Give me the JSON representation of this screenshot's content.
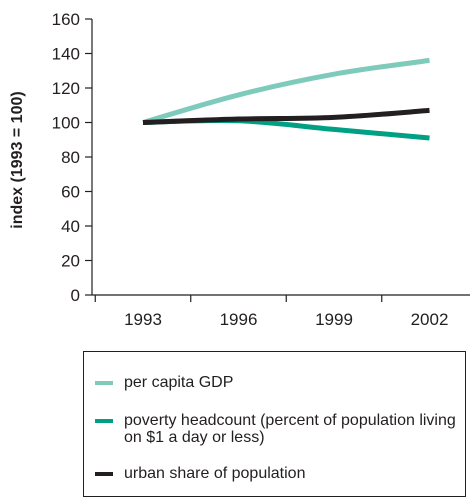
{
  "chart_data": {
    "type": "line",
    "title": "",
    "xlabel": "",
    "ylabel": "index (1993 = 100)",
    "x": [
      "1993",
      "1996",
      "1999",
      "2002"
    ],
    "ylim": [
      0,
      160
    ],
    "yticks": [
      0,
      20,
      40,
      60,
      80,
      100,
      120,
      140,
      160
    ],
    "grid": false,
    "legend_position": "bottom",
    "series": [
      {
        "name": "per capita GDP",
        "color": "#7fcbbb",
        "values": [
          100,
          116,
          128,
          136
        ]
      },
      {
        "name": "poverty headcount (percent of population living on $1 a day or less)",
        "color": "#00a085",
        "values": [
          100,
          101,
          96,
          91
        ]
      },
      {
        "name": "urban share of population",
        "color": "#231f20",
        "values": [
          100,
          102,
          103,
          107
        ]
      }
    ]
  },
  "legend": {
    "items": [
      {
        "label": "per capita GDP",
        "color": "#7fcbbb"
      },
      {
        "label": "poverty headcount (percent of population living on $1 a day or less)",
        "color": "#00a085"
      },
      {
        "label": "urban share of population",
        "color": "#231f20"
      }
    ]
  }
}
